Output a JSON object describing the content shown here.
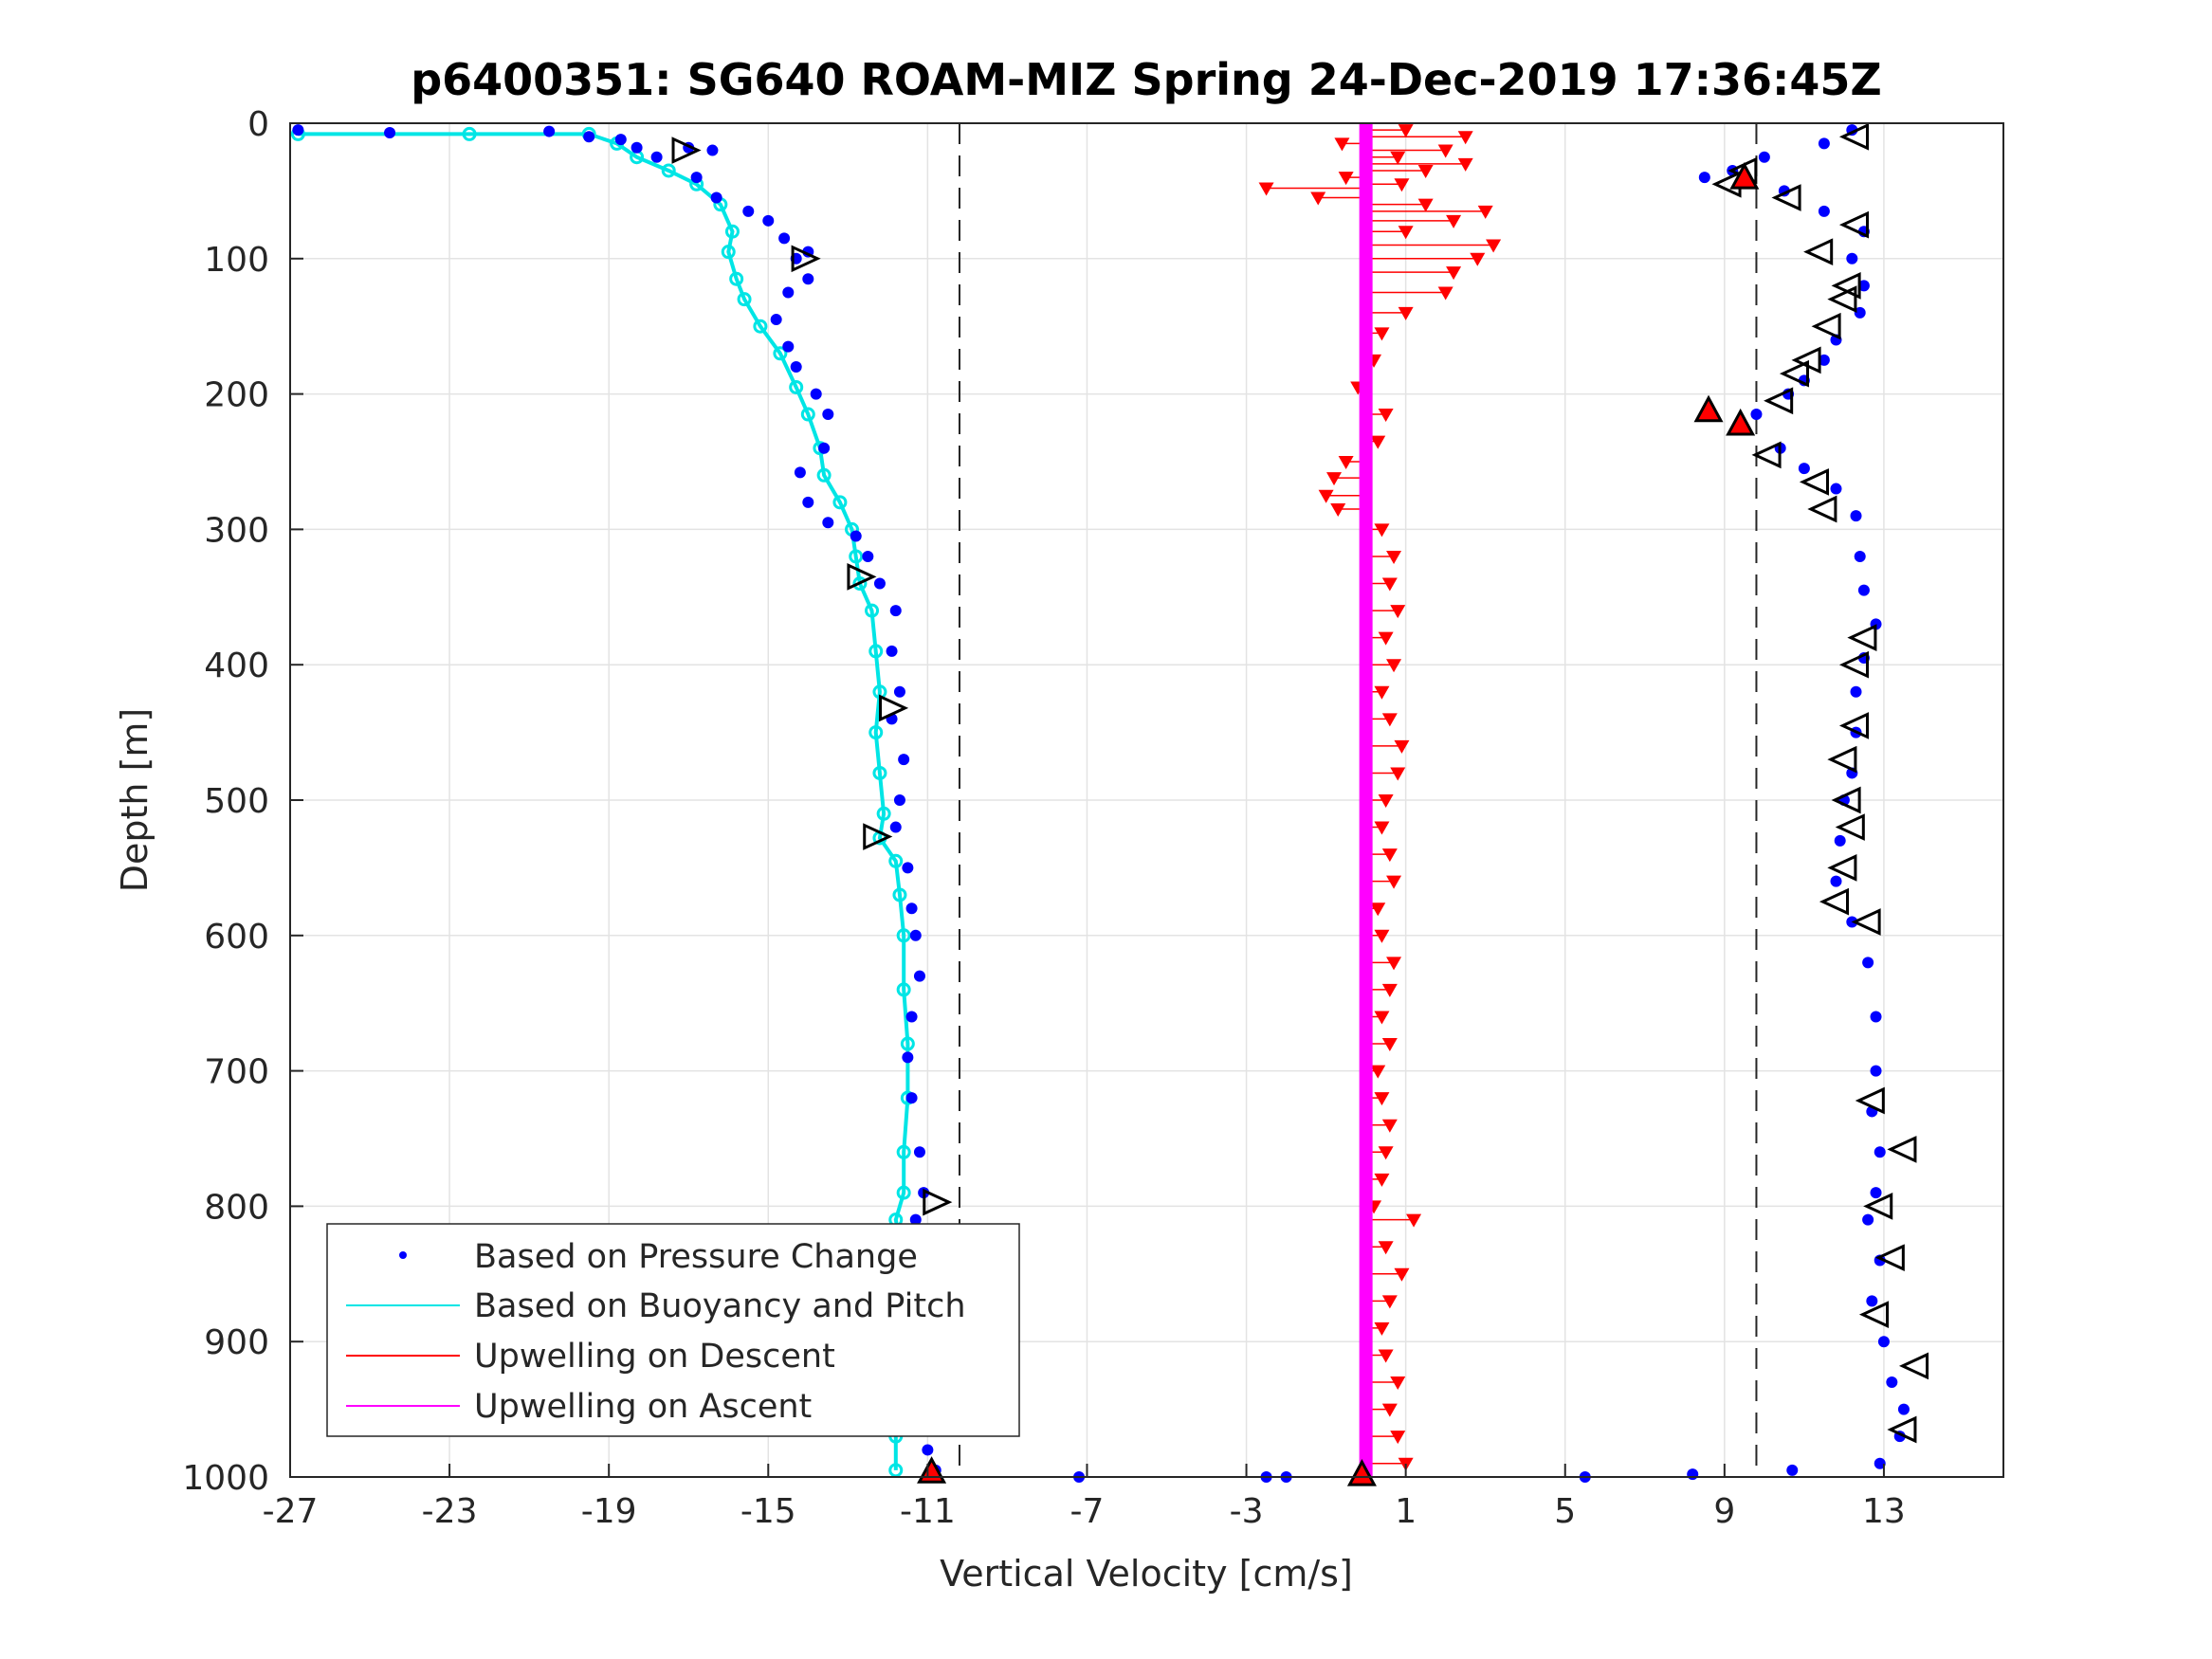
{
  "chart_data": {
    "type": "scatter",
    "title": "p6400351: SG640 ROAM-MIZ Spring 24-Dec-2019 17:36:45Z",
    "xlabel": "Vertical Velocity [cm/s]",
    "ylabel": "Depth [m]",
    "xlim": [
      -27,
      16
    ],
    "ylim": [
      0,
      1000
    ],
    "y_reversed": true,
    "xticks": [
      "-27",
      "-23",
      "-19",
      "-15",
      "-11",
      "-7",
      "-3",
      "1",
      "5",
      "9",
      "13"
    ],
    "yticks": [
      "0",
      "100",
      "200",
      "300",
      "400",
      "500",
      "600",
      "700",
      "800",
      "900",
      "1000"
    ],
    "grid": true,
    "legend_position": "bottom-left",
    "reference_lines_x": [
      -10.2,
      9.8
    ],
    "series": [
      {
        "name": "Based on Pressure Change",
        "color": "#0000ff",
        "marker": "dot",
        "descent": [
          [
            -26.8,
            5
          ],
          [
            -24.5,
            7
          ],
          [
            -20.5,
            6
          ],
          [
            -19.5,
            10
          ],
          [
            -18.7,
            12
          ],
          [
            -18.3,
            18
          ],
          [
            -17.8,
            25
          ],
          [
            -17.0,
            18
          ],
          [
            -16.4,
            20
          ],
          [
            -16.8,
            40
          ],
          [
            -16.3,
            55
          ],
          [
            -15.5,
            65
          ],
          [
            -15.0,
            72
          ],
          [
            -14.6,
            85
          ],
          [
            -14.0,
            95
          ],
          [
            -14.3,
            100
          ],
          [
            -14.0,
            115
          ],
          [
            -14.5,
            125
          ],
          [
            -14.8,
            145
          ],
          [
            -14.5,
            165
          ],
          [
            -14.3,
            180
          ],
          [
            -13.8,
            200
          ],
          [
            -13.5,
            215
          ],
          [
            -13.6,
            240
          ],
          [
            -14.2,
            258
          ],
          [
            -14.0,
            280
          ],
          [
            -13.5,
            295
          ],
          [
            -12.8,
            305
          ],
          [
            -12.5,
            320
          ],
          [
            -12.2,
            340
          ],
          [
            -11.8,
            360
          ],
          [
            -11.9,
            390
          ],
          [
            -11.7,
            420
          ],
          [
            -11.9,
            440
          ],
          [
            -11.6,
            470
          ],
          [
            -11.7,
            500
          ],
          [
            -11.8,
            520
          ],
          [
            -11.5,
            550
          ],
          [
            -11.4,
            580
          ],
          [
            -11.3,
            600
          ],
          [
            -11.2,
            630
          ],
          [
            -11.4,
            660
          ],
          [
            -11.5,
            690
          ],
          [
            -11.4,
            720
          ],
          [
            -11.2,
            760
          ],
          [
            -11.1,
            790
          ],
          [
            -11.3,
            810
          ],
          [
            -11.2,
            840
          ],
          [
            -11.4,
            870
          ],
          [
            -11.3,
            900
          ],
          [
            -11.1,
            930
          ],
          [
            -11.2,
            960
          ],
          [
            -11.0,
            980
          ],
          [
            -10.8,
            995
          ],
          [
            -7.2,
            1000
          ],
          [
            -2.5,
            1000
          ],
          [
            -2.0,
            1000
          ]
        ],
        "ascent": [
          [
            12.2,
            5
          ],
          [
            11.5,
            15
          ],
          [
            10.0,
            25
          ],
          [
            9.2,
            35
          ],
          [
            8.5,
            40
          ],
          [
            10.5,
            50
          ],
          [
            11.5,
            65
          ],
          [
            12.5,
            80
          ],
          [
            12.2,
            100
          ],
          [
            12.5,
            120
          ],
          [
            12.4,
            140
          ],
          [
            11.8,
            160
          ],
          [
            11.5,
            175
          ],
          [
            11.0,
            190
          ],
          [
            10.6,
            200
          ],
          [
            9.8,
            215
          ],
          [
            10.4,
            240
          ],
          [
            11.0,
            255
          ],
          [
            11.8,
            270
          ],
          [
            12.3,
            290
          ],
          [
            12.4,
            320
          ],
          [
            12.5,
            345
          ],
          [
            12.8,
            370
          ],
          [
            12.5,
            395
          ],
          [
            12.3,
            420
          ],
          [
            12.3,
            450
          ],
          [
            12.2,
            480
          ],
          [
            12.0,
            500
          ],
          [
            11.9,
            530
          ],
          [
            11.8,
            560
          ],
          [
            12.2,
            590
          ],
          [
            12.6,
            620
          ],
          [
            12.8,
            660
          ],
          [
            12.8,
            700
          ],
          [
            12.7,
            730
          ],
          [
            12.9,
            760
          ],
          [
            12.8,
            790
          ],
          [
            12.6,
            810
          ],
          [
            12.9,
            840
          ],
          [
            12.7,
            870
          ],
          [
            13.0,
            900
          ],
          [
            13.2,
            930
          ],
          [
            13.5,
            950
          ],
          [
            13.4,
            970
          ],
          [
            12.9,
            990
          ],
          [
            10.7,
            995
          ],
          [
            8.2,
            998
          ],
          [
            5.5,
            1000
          ]
        ]
      },
      {
        "name": "Based on Buoyancy and Pitch",
        "color": "#00e5e5",
        "marker": "line",
        "points": [
          [
            -26.8,
            8
          ],
          [
            -22.5,
            8
          ],
          [
            -19.5,
            8
          ],
          [
            -18.8,
            15
          ],
          [
            -18.3,
            25
          ],
          [
            -17.5,
            35
          ],
          [
            -16.8,
            45
          ],
          [
            -16.2,
            60
          ],
          [
            -15.9,
            80
          ],
          [
            -16.0,
            95
          ],
          [
            -15.8,
            115
          ],
          [
            -15.6,
            130
          ],
          [
            -15.2,
            150
          ],
          [
            -14.7,
            170
          ],
          [
            -14.3,
            195
          ],
          [
            -14.0,
            215
          ],
          [
            -13.7,
            240
          ],
          [
            -13.6,
            260
          ],
          [
            -13.2,
            280
          ],
          [
            -12.9,
            300
          ],
          [
            -12.8,
            320
          ],
          [
            -12.7,
            340
          ],
          [
            -12.4,
            360
          ],
          [
            -12.3,
            390
          ],
          [
            -12.2,
            420
          ],
          [
            -12.3,
            450
          ],
          [
            -12.2,
            480
          ],
          [
            -12.1,
            510
          ],
          [
            -12.2,
            528
          ],
          [
            -11.8,
            545
          ],
          [
            -11.7,
            570
          ],
          [
            -11.6,
            600
          ],
          [
            -11.6,
            640
          ],
          [
            -11.5,
            680
          ],
          [
            -11.5,
            720
          ],
          [
            -11.6,
            760
          ],
          [
            -11.6,
            790
          ],
          [
            -11.8,
            810
          ],
          [
            -11.6,
            840
          ],
          [
            -11.5,
            870
          ],
          [
            -11.6,
            900
          ],
          [
            -11.7,
            940
          ],
          [
            -11.8,
            970
          ],
          [
            -11.8,
            995
          ]
        ]
      },
      {
        "name": "Upwelling on Descent",
        "color": "#ff0000",
        "marker": "triangle-down",
        "points": [
          [
            1.0,
            5
          ],
          [
            2.5,
            10
          ],
          [
            -0.6,
            15
          ],
          [
            2.0,
            20
          ],
          [
            0.8,
            25
          ],
          [
            2.5,
            30
          ],
          [
            1.5,
            35
          ],
          [
            -0.5,
            40
          ],
          [
            0.9,
            45
          ],
          [
            -2.5,
            48
          ],
          [
            -1.2,
            55
          ],
          [
            1.5,
            60
          ],
          [
            3.0,
            65
          ],
          [
            2.2,
            72
          ],
          [
            1.0,
            80
          ],
          [
            3.2,
            90
          ],
          [
            2.8,
            100
          ],
          [
            2.2,
            110
          ],
          [
            2.0,
            125
          ],
          [
            1.0,
            140
          ],
          [
            0.4,
            155
          ],
          [
            0.2,
            175
          ],
          [
            -0.2,
            195
          ],
          [
            0.5,
            215
          ],
          [
            0.3,
            235
          ],
          [
            -0.5,
            250
          ],
          [
            -0.8,
            262
          ],
          [
            -1.0,
            275
          ],
          [
            -0.7,
            285
          ],
          [
            0.4,
            300
          ],
          [
            0.7,
            320
          ],
          [
            0.6,
            340
          ],
          [
            0.8,
            360
          ],
          [
            0.5,
            380
          ],
          [
            0.7,
            400
          ],
          [
            0.4,
            420
          ],
          [
            0.6,
            440
          ],
          [
            0.9,
            460
          ],
          [
            0.8,
            480
          ],
          [
            0.5,
            500
          ],
          [
            0.4,
            520
          ],
          [
            0.6,
            540
          ],
          [
            0.7,
            560
          ],
          [
            0.3,
            580
          ],
          [
            0.4,
            600
          ],
          [
            0.7,
            620
          ],
          [
            0.6,
            640
          ],
          [
            0.4,
            660
          ],
          [
            0.6,
            680
          ],
          [
            0.3,
            700
          ],
          [
            0.4,
            720
          ],
          [
            0.6,
            740
          ],
          [
            0.5,
            760
          ],
          [
            0.4,
            780
          ],
          [
            0.2,
            800
          ],
          [
            1.2,
            810
          ],
          [
            0.5,
            830
          ],
          [
            0.9,
            850
          ],
          [
            0.6,
            870
          ],
          [
            0.4,
            890
          ],
          [
            0.5,
            910
          ],
          [
            0.8,
            930
          ],
          [
            0.6,
            950
          ],
          [
            0.8,
            970
          ],
          [
            1.0,
            990
          ]
        ]
      },
      {
        "name": "Upwelling on Ascent",
        "color": "#ff00ff",
        "marker": "line",
        "points": [
          [
            0.0,
            0
          ],
          [
            0.0,
            1000
          ]
        ]
      }
    ],
    "direction_markers": {
      "down_edge": [
        [
          -17.1,
          20
        ],
        [
          -14.1,
          100
        ],
        [
          -12.7,
          335
        ],
        [
          -11.9,
          432
        ],
        [
          -12.3,
          527
        ],
        [
          -10.8,
          797
        ],
        [
          -11.5,
          855
        ],
        [
          -10.8,
          887
        ]
      ],
      "up_edge": [
        [
          12.3,
          10
        ],
        [
          9.5,
          35
        ],
        [
          9.1,
          45
        ],
        [
          10.6,
          55
        ],
        [
          11.4,
          95
        ],
        [
          12.3,
          75
        ],
        [
          12.1,
          120
        ],
        [
          12.0,
          130
        ],
        [
          11.6,
          150
        ],
        [
          11.1,
          175
        ],
        [
          10.8,
          185
        ],
        [
          10.4,
          205
        ],
        [
          10.1,
          245
        ],
        [
          11.3,
          265
        ],
        [
          11.5,
          285
        ],
        [
          12.5,
          380
        ],
        [
          12.3,
          400
        ],
        [
          12.3,
          445
        ],
        [
          12.0,
          470
        ],
        [
          12.1,
          500
        ],
        [
          12.2,
          520
        ],
        [
          12.0,
          550
        ],
        [
          11.8,
          575
        ],
        [
          12.6,
          590
        ],
        [
          12.7,
          722
        ],
        [
          13.5,
          758
        ],
        [
          12.9,
          800
        ],
        [
          13.2,
          838
        ],
        [
          12.8,
          880
        ],
        [
          13.8,
          918
        ],
        [
          13.5,
          965
        ]
      ],
      "filled_red": [
        [
          -10.9,
          996
        ],
        [
          -0.1,
          998
        ],
        [
          9.5,
          40
        ],
        [
          8.6,
          212
        ],
        [
          9.4,
          222
        ]
      ]
    }
  }
}
